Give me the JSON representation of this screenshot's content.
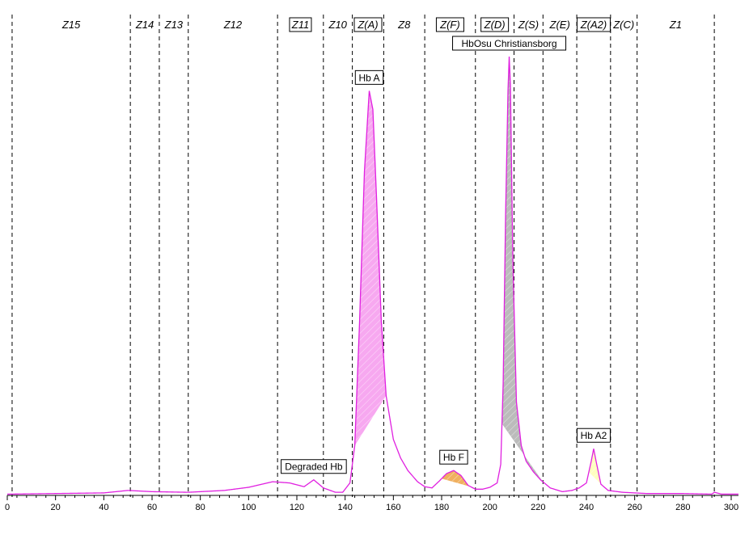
{
  "chart_data": {
    "type": "line",
    "x_range": [
      0,
      300
    ],
    "x_ticks": [
      0,
      20,
      40,
      60,
      80,
      100,
      120,
      140,
      160,
      180,
      200,
      220,
      240,
      260,
      280,
      300
    ],
    "zone_boundaries": [
      2,
      51,
      63,
      75,
      112,
      131,
      143,
      156,
      173,
      194,
      210,
      222,
      236,
      250,
      261,
      293
    ],
    "zones": [
      {
        "label": "Z15",
        "x": 26.5,
        "boxed": false
      },
      {
        "label": "Z14",
        "x": 57,
        "boxed": false
      },
      {
        "label": "Z13",
        "x": 69,
        "boxed": false
      },
      {
        "label": "Z12",
        "x": 93.5,
        "boxed": false
      },
      {
        "label": "Z11",
        "x": 121.5,
        "boxed": true
      },
      {
        "label": "Z10",
        "x": 137,
        "boxed": false
      },
      {
        "label": "Z(A)",
        "x": 149.5,
        "boxed": true
      },
      {
        "label": "Z8",
        "x": 164.5,
        "boxed": false
      },
      {
        "label": "Z(F)",
        "x": 183.5,
        "boxed": true
      },
      {
        "label": "Z(D)",
        "x": 202,
        "boxed": true
      },
      {
        "label": "Z(S)",
        "x": 216,
        "boxed": false
      },
      {
        "label": "Z(E)",
        "x": 229,
        "boxed": false
      },
      {
        "label": "Z(A2)",
        "x": 243,
        "boxed": true
      },
      {
        "label": "Z(C)",
        "x": 255.5,
        "boxed": false
      },
      {
        "label": "Z1",
        "x": 277,
        "boxed": false
      }
    ],
    "peaks": [
      {
        "label": "Degraded Hb",
        "x": 127,
        "y": 2.5,
        "fill": "none",
        "range": null
      },
      {
        "label": "Hb A",
        "x": 150,
        "y": 65,
        "fill": "#f7a8f0",
        "range": [
          144,
          157
        ]
      },
      {
        "label": "Hb F",
        "x": 185,
        "y": 4.0,
        "fill": "#f0b060",
        "range": [
          180,
          192
        ]
      },
      {
        "label": "HbOsu Christiansborg",
        "x": 208,
        "y": 70.5,
        "fill": "#bbbbbb",
        "range": [
          205,
          222
        ]
      },
      {
        "label": "Hb A2",
        "x": 243,
        "y": 7.5,
        "fill": "#ffffc0",
        "range": [
          241,
          247
        ]
      }
    ],
    "trace_points": [
      [
        0,
        0.2
      ],
      [
        20,
        0.3
      ],
      [
        40,
        0.4
      ],
      [
        50,
        0.8
      ],
      [
        60,
        0.6
      ],
      [
        75,
        0.5
      ],
      [
        90,
        0.8
      ],
      [
        100,
        1.3
      ],
      [
        110,
        2.2
      ],
      [
        117,
        2.0
      ],
      [
        123,
        1.4
      ],
      [
        127,
        2.5
      ],
      [
        131,
        1.2
      ],
      [
        136,
        0.5
      ],
      [
        139,
        0.5
      ],
      [
        142,
        2.0
      ],
      [
        144,
        8
      ],
      [
        146,
        28
      ],
      [
        148,
        52
      ],
      [
        150,
        65
      ],
      [
        151.5,
        62
      ],
      [
        153,
        48
      ],
      [
        155,
        28
      ],
      [
        157,
        16
      ],
      [
        160,
        9
      ],
      [
        163,
        6
      ],
      [
        166,
        4.0
      ],
      [
        170,
        2.2
      ],
      [
        173,
        1.4
      ],
      [
        176,
        1.2
      ],
      [
        179,
        2.3
      ],
      [
        182,
        3.5
      ],
      [
        185,
        4.0
      ],
      [
        188,
        3.2
      ],
      [
        191,
        1.6
      ],
      [
        194,
        1.0
      ],
      [
        197,
        1.0
      ],
      [
        200,
        1.3
      ],
      [
        203,
        2.0
      ],
      [
        204.5,
        5
      ],
      [
        205.5,
        18
      ],
      [
        206.5,
        45
      ],
      [
        207.5,
        65
      ],
      [
        208,
        70.5
      ],
      [
        208.5,
        66
      ],
      [
        209.5,
        38
      ],
      [
        211,
        15
      ],
      [
        213,
        8
      ],
      [
        215,
        5.5
      ],
      [
        218,
        3.8
      ],
      [
        221,
        2.5
      ],
      [
        225,
        1.2
      ],
      [
        230,
        0.6
      ],
      [
        234,
        0.8
      ],
      [
        237,
        1.2
      ],
      [
        240,
        2.0
      ],
      [
        242,
        5.5
      ],
      [
        243,
        7.5
      ],
      [
        244,
        5.5
      ],
      [
        246,
        1.8
      ],
      [
        249,
        0.8
      ],
      [
        255,
        0.5
      ],
      [
        265,
        0.3
      ],
      [
        280,
        0.3
      ],
      [
        292,
        0.2
      ],
      [
        293,
        0.5
      ],
      [
        296,
        0.2
      ],
      [
        303,
        0.2
      ]
    ],
    "colors": {
      "trace": "#e020e0",
      "zone_lines": "#000000",
      "axis": "#000000"
    }
  }
}
